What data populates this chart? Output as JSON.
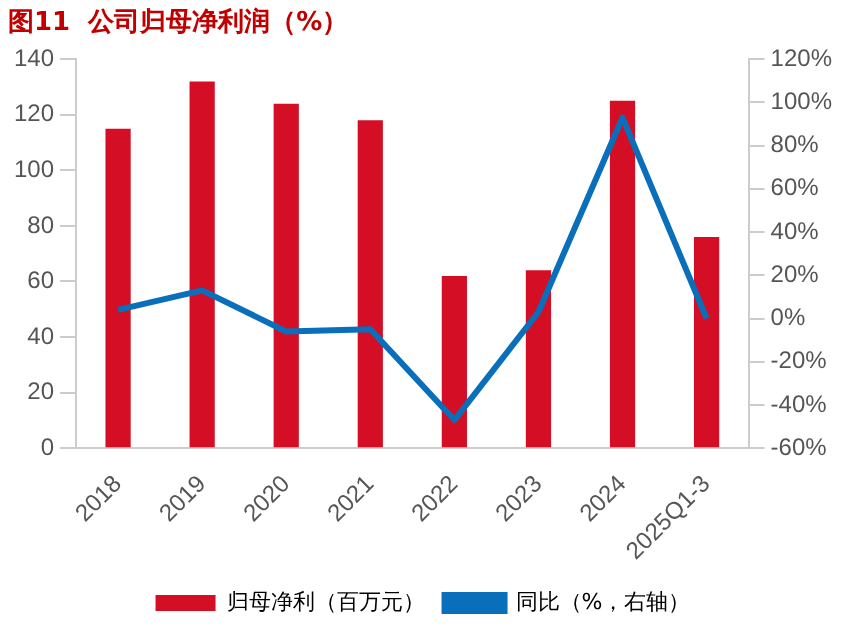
{
  "chart_data": {
    "type": "bar",
    "title": "图11  公司归母净利润（%）",
    "categories": [
      "2018",
      "2019",
      "2020",
      "2021",
      "2022",
      "2023",
      "2024",
      "2025Q1-3"
    ],
    "series": [
      {
        "name": "归母净利（百万元）",
        "color": "#d40e25",
        "values": [
          115,
          132,
          124,
          118,
          62,
          64,
          125,
          76
        ]
      },
      {
        "name": "同比（%，右轴）",
        "type": "line",
        "axis": "y2",
        "color": "#0a6fba",
        "marker": "none",
        "values": [
          4,
          13,
          -6,
          -5,
          -47,
          3,
          93,
          0
        ]
      }
    ],
    "ylim": [
      0,
      140
    ],
    "yticks": [
      0,
      20,
      40,
      60,
      80,
      100,
      120,
      140
    ],
    "y2lim": [
      -60,
      120
    ],
    "y2ticks": [
      {
        "value": -60,
        "label": "-60%"
      },
      {
        "value": -40,
        "label": "-40%"
      },
      {
        "value": -20,
        "label": "-20%"
      },
      {
        "value": 0,
        "label": "0%"
      },
      {
        "value": 20,
        "label": "20%"
      },
      {
        "value": 40,
        "label": "40%"
      },
      {
        "value": 60,
        "label": "60%"
      },
      {
        "value": 80,
        "label": "80%"
      },
      {
        "value": 100,
        "label": "100%"
      },
      {
        "value": 120,
        "label": "120%"
      }
    ],
    "grid": false,
    "legend": "bottom"
  }
}
